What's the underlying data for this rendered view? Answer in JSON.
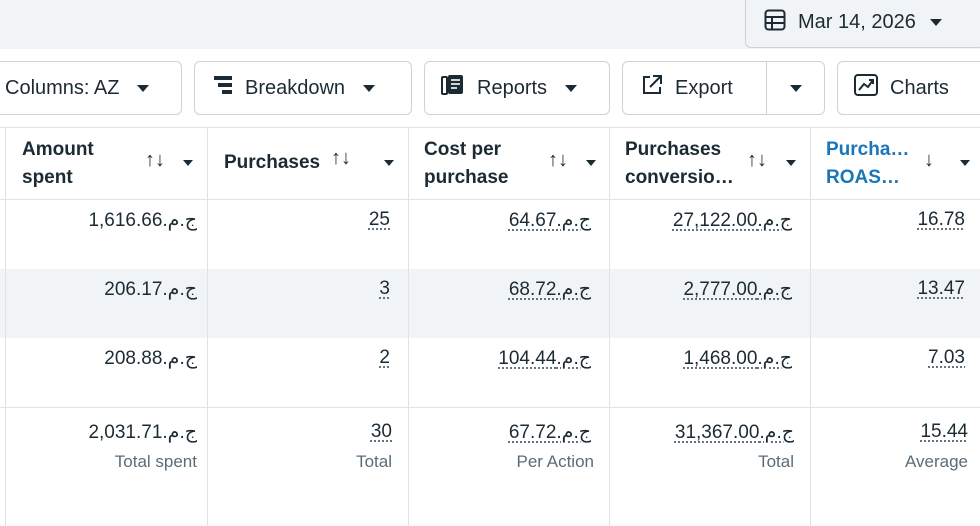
{
  "date_picker": {
    "label": "Mar 14, 2026"
  },
  "toolbar": {
    "columns_label": "Columns: AZ",
    "breakdown_label": "Breakdown",
    "reports_label": "Reports",
    "export_label": "Export",
    "charts_label": "Charts"
  },
  "table": {
    "headers": {
      "amount_spent": [
        "Amount",
        "spent"
      ],
      "purchases": [
        "Purchases"
      ],
      "cost_per_purchase": [
        "Cost per",
        "purchase"
      ],
      "purchases_conversion": [
        "Purchases",
        "conversio…"
      ],
      "purchase_roas": [
        "Purcha…",
        "ROAS…"
      ]
    },
    "rows": [
      {
        "amount_spent": "ج.م.1,616.66",
        "purchases": "25",
        "cost_per_purchase": "ج.م.64.67",
        "purchases_conversion": "ج.م.27,122.00",
        "purchase_roas": "16.78"
      },
      {
        "amount_spent": "ج.م.206.17",
        "purchases": "3",
        "cost_per_purchase": "ج.م.68.72",
        "purchases_conversion": "ج.م.2,777.00",
        "purchase_roas": "13.47"
      },
      {
        "amount_spent": "ج.م.208.88",
        "purchases": "2",
        "cost_per_purchase": "ج.م.104.44",
        "purchases_conversion": "ج.م.1,468.00",
        "purchase_roas": "7.03"
      }
    ],
    "totals": {
      "amount_spent": "ج.م.2,031.71",
      "amount_spent_label": "Total spent",
      "purchases": "30",
      "purchases_label": "Total",
      "cost_per_purchase": "ج.م.67.72",
      "cost_per_purchase_label": "Per Action",
      "purchases_conversion": "ج.م.31,367.00",
      "purchases_conversion_label": "Total",
      "purchase_roas": "15.44",
      "purchase_roas_label": "Average"
    }
  },
  "icons": {
    "date": "table-calendar-icon",
    "breakdown": "breakdown-icon",
    "reports": "reports-icon",
    "export": "export-icon",
    "charts": "chart-icon"
  },
  "colors": {
    "accent": "#1a76b8",
    "text": "#1c2b33",
    "muted": "#5c6c77",
    "border": "#cbd2d9",
    "shade": "#f1f4f7"
  }
}
